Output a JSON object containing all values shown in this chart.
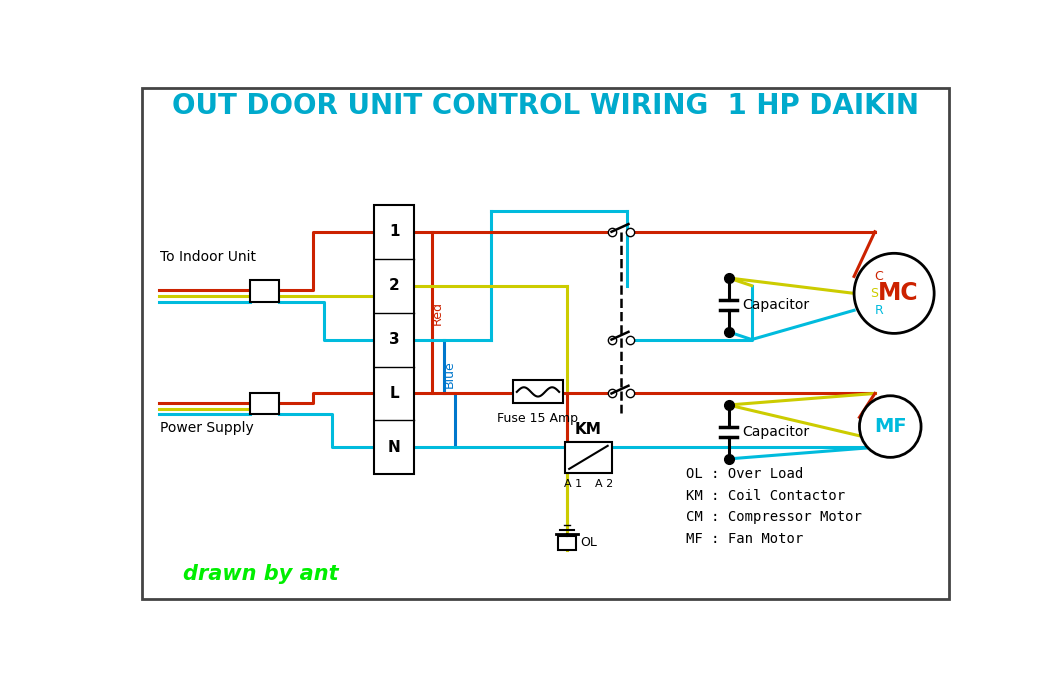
{
  "title": "OUT DOOR UNIT CONTROL WIRING  1 HP DAIKIN",
  "title_color": "#00AACC",
  "title_fontsize": 20,
  "bg_color": "#FFFFFF",
  "border_color": "#444444",
  "wire_red": "#CC2200",
  "wire_blue": "#0077CC",
  "wire_yellow": "#CCCC00",
  "wire_cyan": "#00BBDD",
  "text_color": "#222222",
  "legend_line1": "OL : Over Load",
  "legend_line2": "KM : Coil Contactor",
  "legend_line3": "CM : Compressor Motor",
  "legend_line4": "MF : Fan Motor",
  "watermark": "drawn by ant",
  "watermark_color": "#00EE00"
}
